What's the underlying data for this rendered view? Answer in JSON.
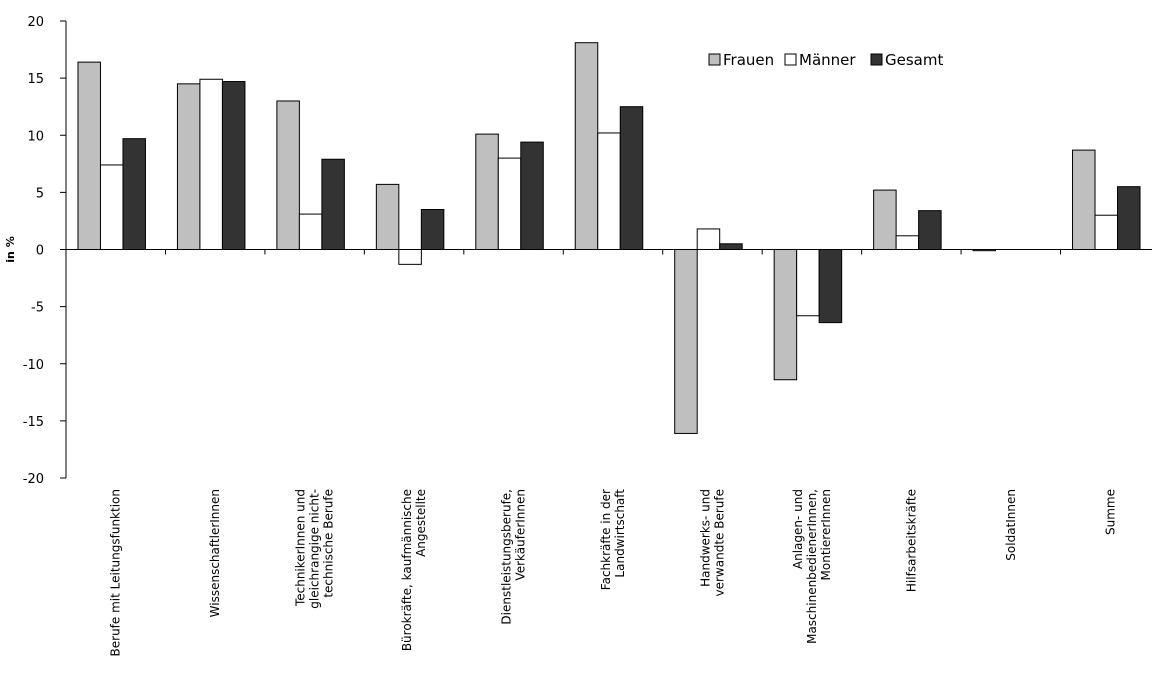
{
  "chart_data": {
    "type": "bar",
    "ylabel": "in %",
    "ylim": [
      -20,
      20
    ],
    "yticks": [
      20,
      15,
      10,
      5,
      0,
      -5,
      -10,
      -15,
      -20
    ],
    "legend_position": "top-right",
    "categories": [
      "Berufe mit Leitungsfunktion",
      "WissenschaftlerInnen",
      "TechnikerInnen und gleichrangige nicht-technische Berufe",
      "Bürokräfte, kaufmännische Angestellte",
      "Dienstleistungsberufe, VerkäuferInnen",
      "Fachkräfte in der Landwirtschaft",
      "Handwerks- und verwandte Berufe",
      "Anlagen- und MaschinenbedienerInnen, MontiererInnen",
      "Hilfsarbeitskräfte",
      "SoldatInnen",
      "Summe"
    ],
    "category_lines": [
      [
        "Berufe mit Leitungsfunktion"
      ],
      [
        "WissenschaftlerInnen"
      ],
      [
        "TechnikerInnen und",
        "gleichrangige nicht-",
        "technische Berufe"
      ],
      [
        "Bürokräfte, kaufmännische",
        "Angestellte"
      ],
      [
        "Dienstleistungsberufe,",
        "VerkäuferInnen"
      ],
      [
        "Fachkräfte in der",
        "Landwirtschaft"
      ],
      [
        "Handwerks- und",
        "verwandte Berufe"
      ],
      [
        "Anlagen- und",
        "MaschinenbedienerInnen,",
        "MontiererInnen"
      ],
      [
        "Hilfsarbeitskräfte"
      ],
      [
        "SoldatInnen"
      ],
      [
        "Summe"
      ]
    ],
    "series": [
      {
        "name": "Frauen",
        "color": "#bfbfbf",
        "values": [
          16.4,
          14.5,
          13.0,
          5.7,
          10.1,
          18.1,
          -16.1,
          -11.4,
          5.2,
          -0.1,
          8.7
        ]
      },
      {
        "name": "Männer",
        "color": "#ffffff",
        "values": [
          7.4,
          14.9,
          3.1,
          -1.3,
          8.0,
          10.2,
          1.8,
          -5.8,
          1.2,
          0.0,
          3.0
        ]
      },
      {
        "name": "Gesamt",
        "color": "#333333",
        "values": [
          9.7,
          14.7,
          7.9,
          3.5,
          9.4,
          12.5,
          0.5,
          -6.4,
          3.4,
          0.0,
          5.5
        ]
      }
    ]
  }
}
